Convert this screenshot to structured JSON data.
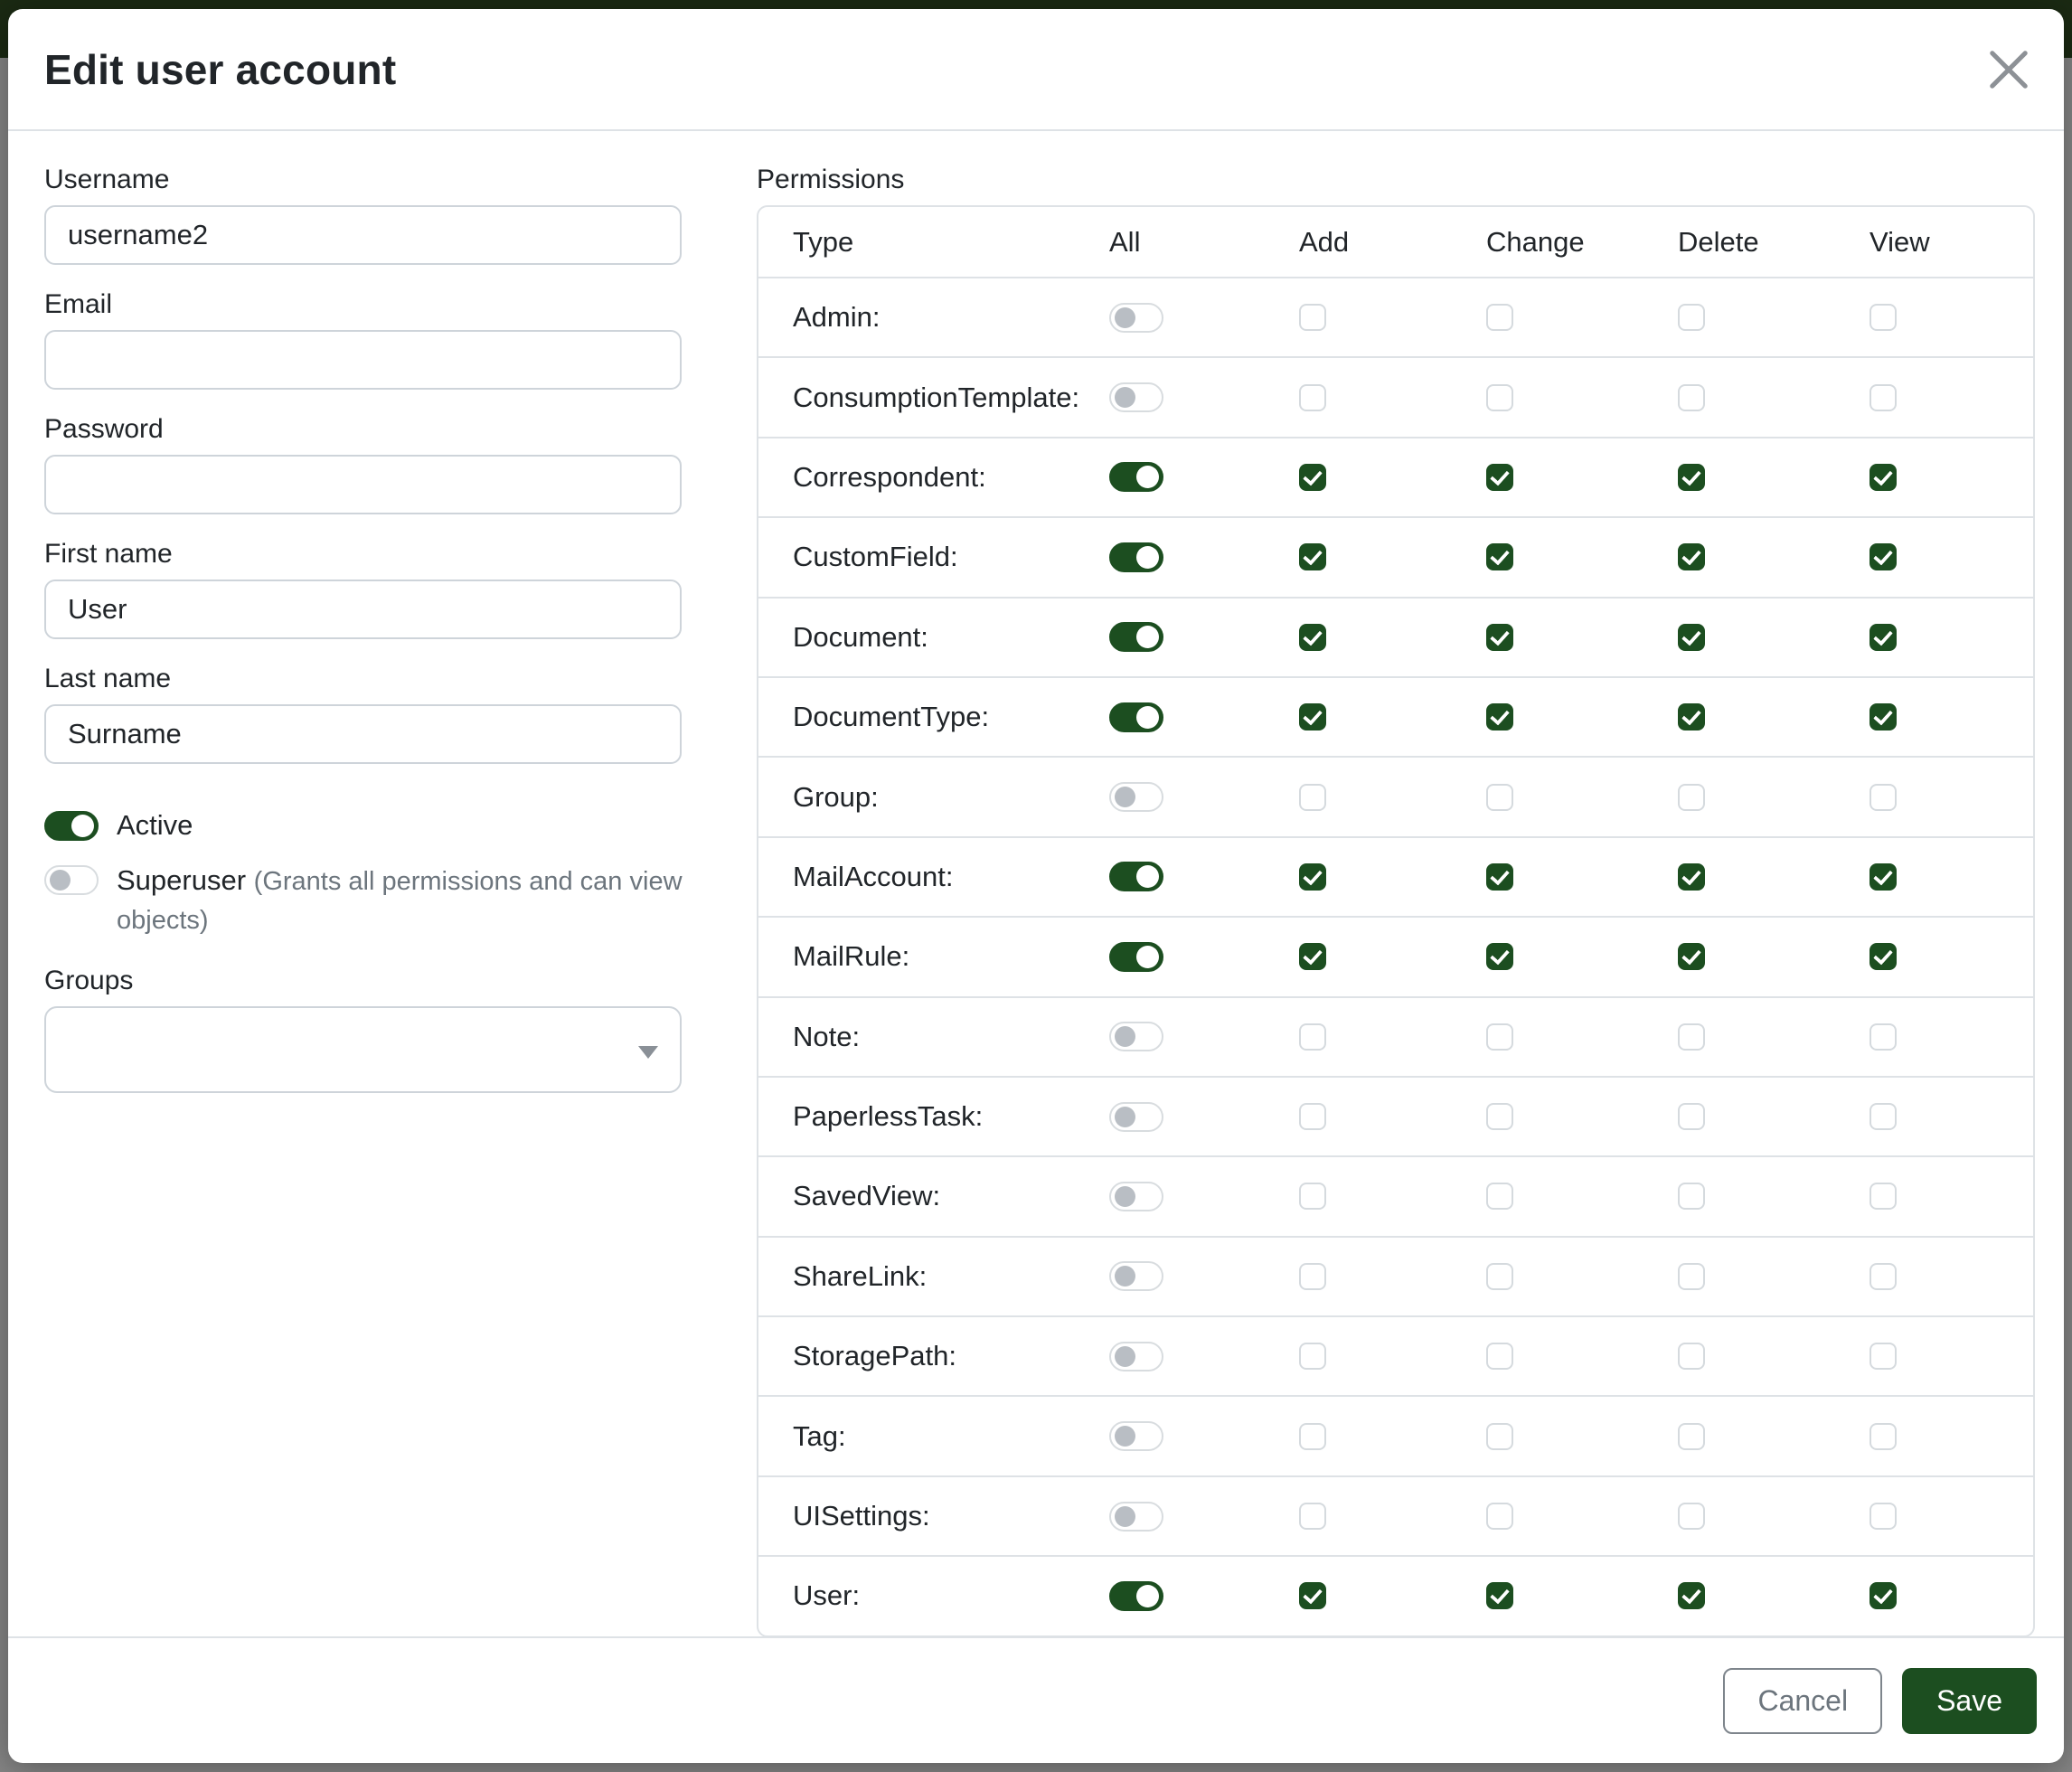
{
  "colors": {
    "primary_green": "#1c4e20",
    "navbar_backdrop_green": "#1b2a13",
    "backdrop_gray": "#868686",
    "border_light": "#dee2e6",
    "text_dark": "#212529",
    "text_muted": "#6c757d"
  },
  "modal": {
    "title": "Edit user account",
    "close_icon": "x",
    "form": {
      "username": {
        "label": "Username",
        "value": "username2"
      },
      "email": {
        "label": "Email",
        "value": ""
      },
      "password": {
        "label": "Password",
        "value": ""
      },
      "first_name": {
        "label": "First name",
        "value": "User"
      },
      "last_name": {
        "label": "Last name",
        "value": "Surname"
      },
      "active": {
        "label": "Active",
        "enabled": true
      },
      "superuser": {
        "label": "Superuser",
        "hint": "(Grants all permissions and can view objects)",
        "enabled": false
      },
      "groups": {
        "label": "Groups",
        "value": ""
      }
    },
    "permissions": {
      "label": "Permissions",
      "columns": [
        "Type",
        "All",
        "Add",
        "Change",
        "Delete",
        "View"
      ],
      "rows": [
        {
          "type": "Admin:",
          "all": false,
          "add": false,
          "change": false,
          "delete": false,
          "view": false
        },
        {
          "type": "ConsumptionTemplate:",
          "all": false,
          "add": false,
          "change": false,
          "delete": false,
          "view": false
        },
        {
          "type": "Correspondent:",
          "all": true,
          "add": true,
          "change": true,
          "delete": true,
          "view": true
        },
        {
          "type": "CustomField:",
          "all": true,
          "add": true,
          "change": true,
          "delete": true,
          "view": true
        },
        {
          "type": "Document:",
          "all": true,
          "add": true,
          "change": true,
          "delete": true,
          "view": true
        },
        {
          "type": "DocumentType:",
          "all": true,
          "add": true,
          "change": true,
          "delete": true,
          "view": true
        },
        {
          "type": "Group:",
          "all": false,
          "add": false,
          "change": false,
          "delete": false,
          "view": false
        },
        {
          "type": "MailAccount:",
          "all": true,
          "add": true,
          "change": true,
          "delete": true,
          "view": true
        },
        {
          "type": "MailRule:",
          "all": true,
          "add": true,
          "change": true,
          "delete": true,
          "view": true
        },
        {
          "type": "Note:",
          "all": false,
          "add": false,
          "change": false,
          "delete": false,
          "view": false
        },
        {
          "type": "PaperlessTask:",
          "all": false,
          "add": false,
          "change": false,
          "delete": false,
          "view": false
        },
        {
          "type": "SavedView:",
          "all": false,
          "add": false,
          "change": false,
          "delete": false,
          "view": false
        },
        {
          "type": "ShareLink:",
          "all": false,
          "add": false,
          "change": false,
          "delete": false,
          "view": false
        },
        {
          "type": "StoragePath:",
          "all": false,
          "add": false,
          "change": false,
          "delete": false,
          "view": false
        },
        {
          "type": "Tag:",
          "all": false,
          "add": false,
          "change": false,
          "delete": false,
          "view": false
        },
        {
          "type": "UISettings:",
          "all": false,
          "add": false,
          "change": false,
          "delete": false,
          "view": false
        },
        {
          "type": "User:",
          "all": true,
          "add": true,
          "change": true,
          "delete": true,
          "view": true
        }
      ]
    },
    "footer": {
      "cancel_label": "Cancel",
      "save_label": "Save"
    }
  }
}
